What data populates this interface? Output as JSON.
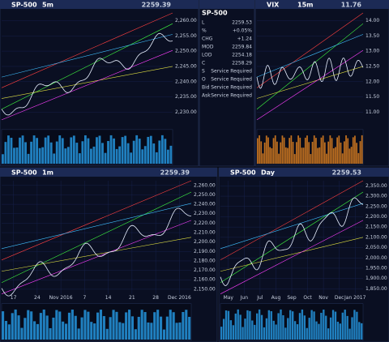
{
  "panels": [
    {
      "symbol": "SP-500",
      "interval": "5m",
      "price": "2259.39",
      "y_labels": [
        "2,260.00",
        "2,255.00",
        "2,250.00",
        "2,245.00",
        "2,240.00",
        "2,235.00",
        "2,230.00"
      ],
      "x_labels": []
    },
    {
      "symbol": "VIX",
      "interval": "15m",
      "price": "11.76",
      "y_labels": [
        "14.00",
        "13.50",
        "13.00",
        "12.50",
        "12.00",
        "11.50",
        "11.00"
      ],
      "x_labels": []
    },
    {
      "symbol": "SP-500",
      "interval": "1m",
      "price": "2259.39",
      "y_labels": [
        "2,260.00",
        "2,250.00",
        "2,240.00",
        "2,230.00",
        "2,220.00",
        "2,210.00",
        "2,200.00",
        "2,190.00",
        "2,180.00",
        "2,170.00",
        "2,160.00",
        "2,150.00"
      ],
      "x_labels": [
        "17",
        "24",
        "Nov 2016",
        "7",
        "14",
        "21",
        "28",
        "Dec 2016"
      ]
    },
    {
      "symbol": "SP-500",
      "interval": "Day",
      "price": "2259.53",
      "y_labels": [
        "2,350.00",
        "2,300.00",
        "2,250.00",
        "2,200.00",
        "2,150.00",
        "2,100.00",
        "2,050.00",
        "2,000.00",
        "1,950.00",
        "1,900.00",
        "1,850.00"
      ],
      "x_labels": [
        "May",
        "Jun",
        "Jul",
        "Aug",
        "Sep",
        "Oct",
        "Nov",
        "Dec",
        "Jan 2017"
      ]
    }
  ],
  "quote": {
    "symbol": "SP-500",
    "rows": [
      {
        "label": "L",
        "value": "2259.53"
      },
      {
        "label": "%",
        "value": "+0.05%"
      },
      {
        "label": "CHG",
        "value": "+1.24"
      },
      {
        "label": "MOD",
        "value": "2259.84"
      },
      {
        "label": "LOD",
        "value": "2254.18"
      },
      {
        "label": "C",
        "value": "2258.29"
      },
      {
        "label": "S",
        "value": "Service Required"
      },
      {
        "label": "O",
        "value": "Service Required"
      },
      {
        "label": "Bid",
        "value": "Service Required"
      },
      {
        "label": "Ask",
        "value": "Service Required"
      }
    ]
  }
}
